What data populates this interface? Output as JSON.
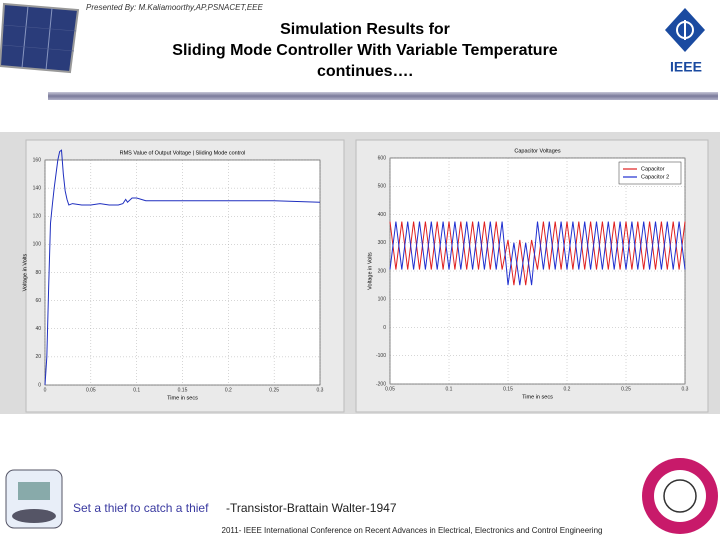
{
  "header": {
    "presenter": "Presented By: M.Kaliamoorthy,AP,PSNACET,EEE",
    "title_lines": [
      "Simulation Results for",
      "Sliding Mode Controller With Variable Temperature",
      "continues…."
    ],
    "logo_text": "IEEE"
  },
  "footer": {
    "quote": "Set a thief to catch a thief",
    "attribution": "-Transistor-Brattain Walter-1947",
    "conference": "2011- IEEE International Conference on Recent Advances in Electrical, Electronics and Control Engineering"
  },
  "chart_data": [
    {
      "type": "line",
      "title": "RMS Value of Output Voltage | Sliding Mode control",
      "x_label": "Time in secs",
      "y_label": "Voltage in Volts",
      "xlim": [
        0,
        0.3
      ],
      "ylim": [
        0,
        160
      ],
      "xticks": [
        0,
        0.05,
        0.1,
        0.15,
        0.2,
        0.25,
        0.3
      ],
      "yticks": [
        0,
        20,
        40,
        60,
        80,
        100,
        120,
        140,
        160
      ],
      "grid": true,
      "x": [
        0,
        0.002,
        0.004,
        0.006,
        0.008,
        0.01,
        0.012,
        0.014,
        0.016,
        0.018,
        0.02,
        0.022,
        0.024,
        0.026,
        0.03,
        0.04,
        0.05,
        0.06,
        0.07,
        0.08,
        0.085,
        0.088,
        0.09,
        0.095,
        0.1,
        0.11,
        0.15,
        0.2,
        0.25,
        0.3
      ],
      "series": [
        {
          "color": "#1f2fbf",
          "values": [
            0,
            20,
            70,
            115,
            128,
            140,
            150,
            160,
            166,
            167,
            150,
            138,
            132,
            128,
            129,
            128,
            128,
            129,
            128,
            128,
            129,
            132,
            130,
            133,
            133,
            131,
            131,
            131,
            131,
            130
          ]
        }
      ]
    },
    {
      "type": "line",
      "title": "Capacitor Voltages",
      "x_label": "Time in secs",
      "y_label": "Voltage in Volts",
      "xlim": [
        0.05,
        0.3
      ],
      "ylim": [
        -200,
        600
      ],
      "xticks": [
        0.05,
        0.1,
        0.15,
        0.2,
        0.25,
        0.3
      ],
      "yticks": [
        -200,
        -100,
        0,
        100,
        200,
        300,
        400,
        500,
        600
      ],
      "grid": true,
      "legend": "upper right",
      "x": [
        0.05,
        0.055,
        0.06,
        0.065,
        0.07,
        0.075,
        0.08,
        0.085,
        0.09,
        0.095,
        0.1,
        0.105,
        0.11,
        0.115,
        0.12,
        0.125,
        0.13,
        0.135,
        0.14,
        0.145,
        0.15,
        0.155,
        0.16,
        0.165,
        0.17,
        0.175,
        0.18,
        0.185,
        0.19,
        0.195,
        0.2,
        0.205,
        0.21,
        0.215,
        0.22,
        0.225,
        0.23,
        0.235,
        0.24,
        0.245,
        0.25,
        0.255,
        0.26,
        0.265,
        0.27,
        0.275,
        0.28,
        0.285,
        0.29,
        0.295,
        0.3
      ],
      "series": [
        {
          "name": "Capacitor",
          "color": "#e02020",
          "values": [
            375,
            205,
            375,
            205,
            375,
            205,
            375,
            205,
            375,
            205,
            375,
            205,
            375,
            205,
            375,
            205,
            375,
            205,
            375,
            205,
            310,
            150,
            310,
            150,
            310,
            205,
            375,
            205,
            375,
            205,
            375,
            205,
            375,
            205,
            375,
            205,
            375,
            205,
            375,
            205,
            375,
            205,
            375,
            205,
            375,
            205,
            375,
            205,
            375,
            205,
            375
          ]
        },
        {
          "name": "Capacitor 2",
          "color": "#2030d0",
          "values": [
            205,
            375,
            205,
            375,
            205,
            375,
            205,
            375,
            205,
            375,
            205,
            375,
            205,
            375,
            205,
            375,
            205,
            375,
            205,
            375,
            150,
            300,
            150,
            300,
            150,
            375,
            205,
            375,
            205,
            375,
            205,
            375,
            205,
            375,
            205,
            375,
            205,
            375,
            205,
            375,
            205,
            375,
            205,
            375,
            205,
            375,
            205,
            375,
            205,
            375,
            205
          ]
        }
      ]
    }
  ]
}
